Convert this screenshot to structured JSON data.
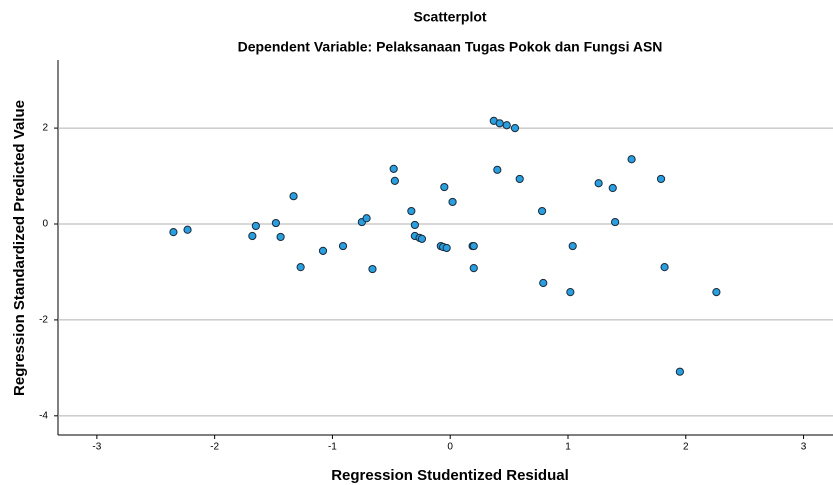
{
  "chart_data": {
    "type": "scatter",
    "title": "Scatterplot",
    "subtitle": "Dependent Variable: Pelaksanaan Tugas Pokok dan Fungsi ASN",
    "x_label": "Regression Studentized Residual",
    "y_label": "Regression Standardized Predicted Value",
    "x": [
      -2.35,
      -2.23,
      -1.68,
      -1.65,
      -1.48,
      -1.44,
      -1.33,
      -1.27,
      -1.08,
      -0.91,
      -0.75,
      -0.71,
      -0.66,
      -0.48,
      -0.47,
      -0.33,
      -0.3,
      -0.3,
      -0.26,
      -0.24,
      -0.08,
      -0.06,
      -0.05,
      -0.03,
      0.02,
      0.19,
      0.2,
      0.37,
      0.42,
      0.48,
      0.55,
      0.4,
      0.2,
      0.59,
      0.78,
      0.79,
      1.02,
      1.04,
      1.26,
      1.38,
      1.4,
      1.54,
      1.79,
      1.82,
      1.95,
      2.26
    ],
    "values": [
      -0.17,
      -0.12,
      -0.25,
      -0.04,
      0.02,
      -0.27,
      0.58,
      -0.9,
      -0.56,
      -0.46,
      0.04,
      0.12,
      -0.94,
      1.15,
      0.9,
      0.27,
      -0.02,
      -0.25,
      -0.29,
      -0.31,
      -0.46,
      -0.48,
      0.77,
      -0.5,
      0.46,
      -0.46,
      -0.46,
      2.15,
      2.1,
      2.06,
      2.0,
      1.13,
      -0.92,
      0.94,
      0.27,
      -1.23,
      -1.42,
      -0.46,
      0.85,
      0.75,
      0.04,
      1.35,
      0.94,
      -0.9,
      -3.08,
      -1.42
    ],
    "color": "#2a9fe0",
    "xlim": [
      -3.33,
      3.25
    ],
    "ylim": [
      -4.4,
      3.42
    ],
    "xticks": [
      -3,
      -2,
      -1,
      0,
      1,
      2,
      3
    ],
    "yticks": [
      -4,
      -2,
      0,
      2
    ],
    "grid": true
  }
}
